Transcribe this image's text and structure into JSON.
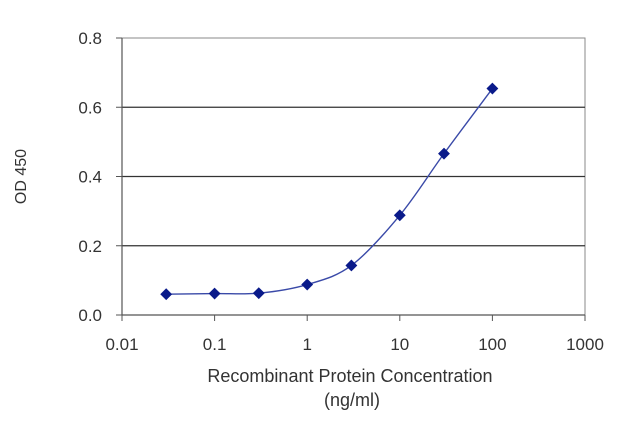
{
  "chart_data": {
    "type": "scatter",
    "title": "",
    "xlabel_line1": "Recombinant  Protein  Concentration",
    "xlabel_line2": "(ng/ml)",
    "ylabel": "OD 450",
    "x_scale": "log",
    "xlim": [
      0.01,
      1000
    ],
    "ylim": [
      0,
      0.8
    ],
    "x_ticks": [
      "0.01",
      "0.1",
      "1",
      "10",
      "100",
      "1000"
    ],
    "y_ticks": [
      "0.0",
      "0.2",
      "0.4",
      "0.6",
      "0.8"
    ],
    "grid": "horizontal",
    "legend": "none",
    "series": [
      {
        "x": [
          0.03,
          0.1,
          0.3,
          1,
          3,
          10,
          30,
          100
        ],
        "y": [
          0.06,
          0.062,
          0.063,
          0.088,
          0.143,
          0.288,
          0.466,
          0.654
        ],
        "marker": "diamond",
        "fitted_curve": true
      }
    ],
    "colors": {
      "marker": "#0a1a8a",
      "curve": "#3a4aa8",
      "plot_background": "#ffffff",
      "gridline": "#333333",
      "frame": "#8a8a8a"
    }
  }
}
